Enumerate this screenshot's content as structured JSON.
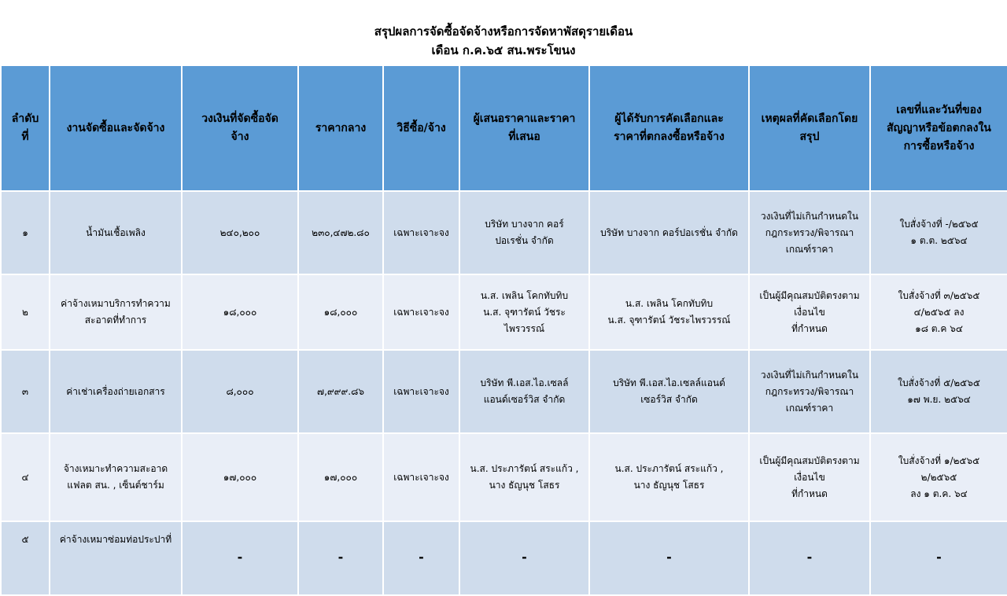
{
  "title": {
    "line1": "สรุปผลการจัดซื้อจัดจ้างหรือการจัดหาพัสดุรายเดือน",
    "line2": "เดือน ก.ค.๖๕ สน.พระโขนง"
  },
  "colors": {
    "header": "#5b9bd5",
    "row_odd": "#cfdcec",
    "row_even": "#e9eef7"
  },
  "columns": [
    "ลำดับ\nที่",
    "งานจัดซื้อและจัดจ้าง",
    "วงเงินที่จัดซื้อจัด\nจ้าง",
    "ราคากลาง",
    "วิธีซื้อ/จ้าง",
    "ผู้เสนอราคาและราคา\nที่เสนอ",
    "ผู้ได้รับการคัดเลือกและ\nราคาที่ตกลงซื้อหรือจ้าง",
    "เหตุผลที่คัดเลือกโดย\nสรุป",
    "เลขที่และวันที่ของ\nสัญญาหรือข้อตกลงใน\nการซื้อหรือจ้าง"
  ],
  "rows": [
    [
      "๑",
      "น้ำมันเชื้อเพลิง",
      "๒๔๐,๒๐๐",
      "๒๓๐,๔๗๒.๘๐",
      "เฉพาะเจาะจง",
      "บริษัท บางจาก คอร์\nปอเรชั่น จำกัด",
      "บริษัท บางจาก คอร์ปอเรชั่น จำกัด",
      "วงเงินที่ไม่เกินกำหนดใน\nกฎกระทรวง/พิจารณา\nเกณฑ์ราคา",
      "ใบสั่งจ้างที่ -/๒๕๖๕\n๑ ต.ต. ๒๕๖๔"
    ],
    [
      "๒",
      "ค่าจ้างเหมาบริการทำความ\nสะอาดที่ทำการ",
      "๑๘,๐๐๐",
      "๑๘,๐๐๐",
      "เฉพาะเจาะจง",
      "น.ส. เพลิน โคกทับทิบ\nน.ส. จุฑารัตน์ วัชระ\nไพรวรรณ์",
      "น.ส. เพลิน โคกทับทิบ\nน.ส. จุฑารัตน์ วัชระไพรวรรณ์",
      "เป็นผู้มีคุณสมบัติตรงตาม\nเงื่อนไข\nที่กำหนด",
      "ใบสั่งจ้างที่ ๓/๒๕๖๕\n๔/๒๕๖๕ ลง\n๑๘ ต.ค ๖๔"
    ],
    [
      "๓",
      "ค่าเช่าเครื่องถ่ายเอกสาร",
      "๘,๐๐๐",
      "๗,๙๙๙.๘๖",
      "เฉพาะเจาะจง",
      "บริษัท พี.เอส.ไอ.เซลล์\nแอนด์เซอร์วิส จำกัด",
      "บริษัท พี.เอส.ไอ.เซลล์แอนด์\nเซอร์วิส จำกัด",
      "วงเงินที่ไม่เกินกำหนดใน\nกฎกระทรวง/พิจารณา\nเกณฑ์ราคา",
      "ใบสั่งจ้างที่ ๕/๒๕๖๕\n๑๗ พ.ย. ๒๕๖๔"
    ],
    [
      "๔",
      "จ้างเหมาะทำความสะอาด\nแฟลต สน. , เซ็นต์ชาร์ม",
      "๑๗,๐๐๐",
      "๑๗,๐๐๐",
      "เฉพาะเจาะจง",
      "น.ส. ประภารัตน์ สระแก้ว ,\nนาง ธัญนุช โสธร",
      "น.ส. ประภารัตน์ สระแก้ว ,\nนาง ธัญนุช โสธร",
      "เป็นผู้มีคุณสมบัติตรงตาม\nเงื่อนไข\nที่กำหนด",
      "ใบสั่งจ้างที่ ๑/๒๕๖๕\n๒/๒๕๖๕\nลง ๑ ต.ค. ๖๔"
    ],
    [
      "๕",
      "ค่าจ้างเหมาซ่อมท่อประปาที่",
      "-",
      "-",
      "-",
      "-",
      "-",
      "-",
      "-"
    ]
  ]
}
